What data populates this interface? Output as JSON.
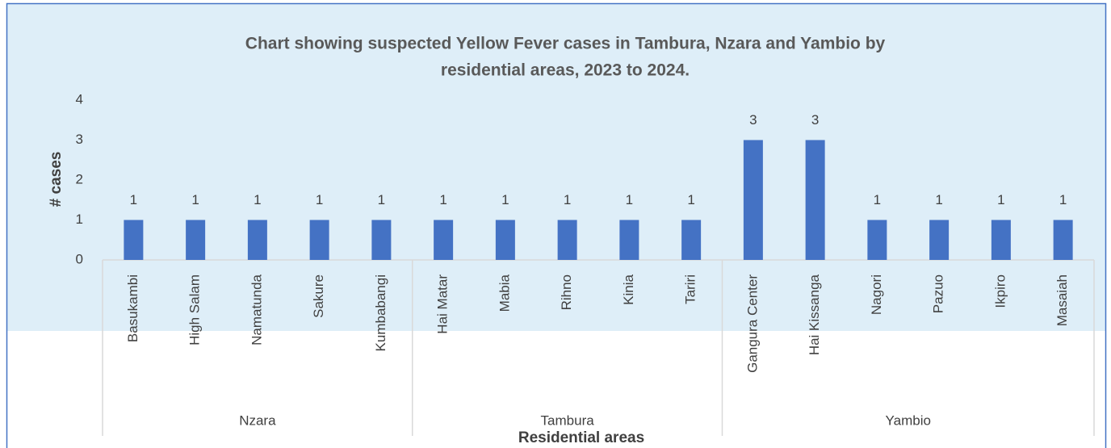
{
  "chart_data": {
    "type": "bar",
    "title": "Chart showing suspected Yellow Fever cases in Tambura, Nzara and Yambio by",
    "subtitle": "residential areas, 2023 to 2024.",
    "y_label": "# cases",
    "x_label": "Residential areas",
    "color": "#4472c4",
    "ylim": [
      0,
      4
    ],
    "yticks": [
      0,
      1,
      2,
      3,
      4
    ],
    "groups": [
      {
        "name": "Nzara",
        "categories": [
          "Basukambi",
          "High Salam",
          "Namatunda",
          "Sakure",
          "Kumbabangi"
        ],
        "values": [
          1,
          1,
          1,
          1,
          1
        ]
      },
      {
        "name": "Tambura",
        "categories": [
          "Hai Matar",
          "Mabia",
          "Rihno",
          "Kinia",
          "Tariri"
        ],
        "values": [
          1,
          1,
          1,
          1,
          1
        ]
      },
      {
        "name": "Yambio",
        "categories": [
          "Gangura Center",
          "Hai Kissanga",
          "Nagori",
          "Pazuo",
          "Ikpiro",
          "Masaiah"
        ],
        "values": [
          3,
          3,
          1,
          1,
          1,
          1
        ]
      }
    ]
  }
}
